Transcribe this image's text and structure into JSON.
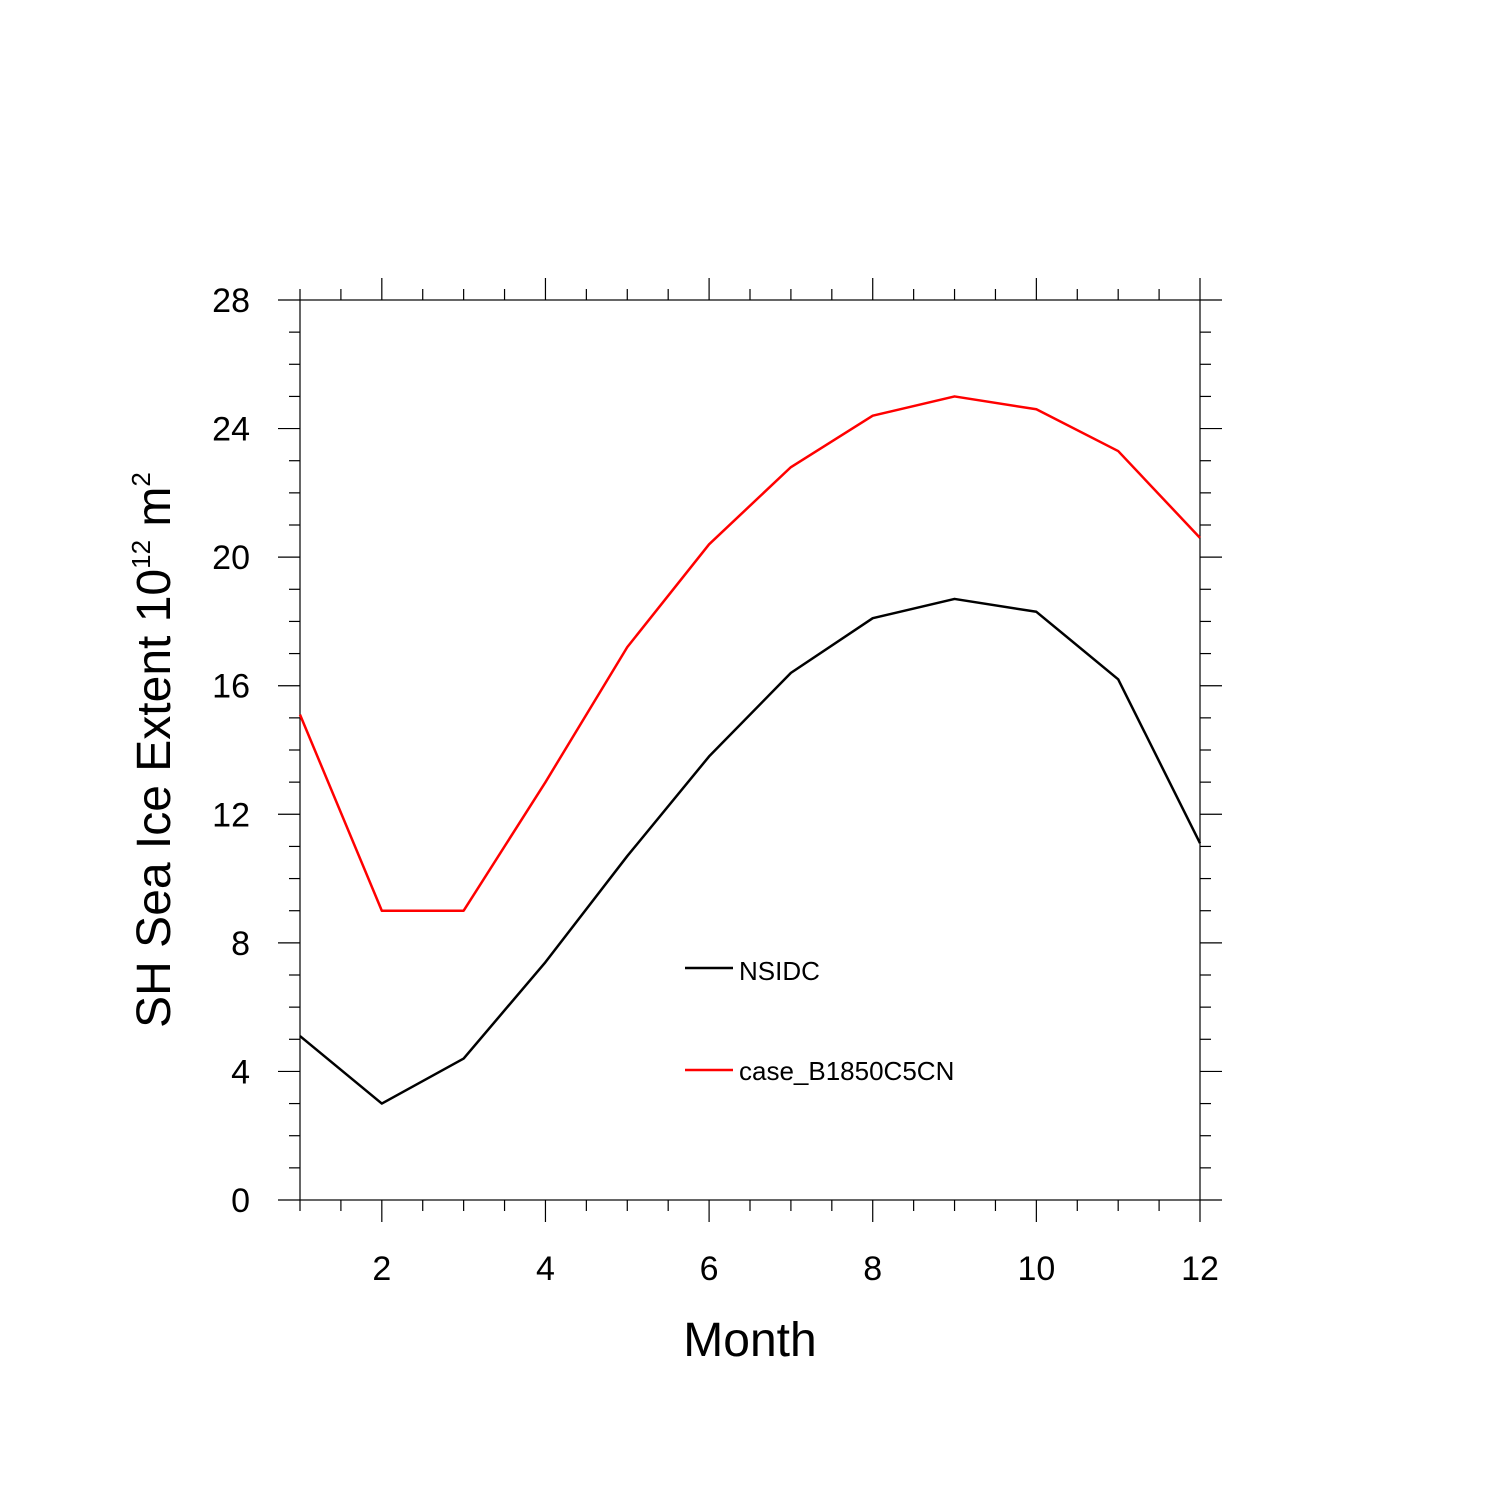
{
  "chart_data": {
    "type": "line",
    "title": "",
    "xlabel": "Month",
    "ylabel": {
      "prefix": "SH Sea Ice Extent 10",
      "exponent1": "12",
      "unit": " m",
      "exponent2": "2"
    },
    "xlim": [
      1,
      12
    ],
    "ylim": [
      0,
      28
    ],
    "x": [
      1,
      2,
      3,
      4,
      5,
      6,
      7,
      8,
      9,
      10,
      11,
      12
    ],
    "xticks": [
      2,
      4,
      6,
      8,
      10,
      12
    ],
    "yticks": [
      0,
      4,
      8,
      12,
      16,
      20,
      24,
      28
    ],
    "grid": false,
    "legend_position": "center",
    "series": [
      {
        "name": "NSIDC",
        "color": "#000000",
        "values": [
          5.1,
          3.0,
          4.4,
          7.4,
          10.7,
          13.8,
          16.4,
          18.1,
          18.7,
          18.3,
          16.2,
          11.1
        ]
      },
      {
        "name": "case_B1850C5CN",
        "color": "#ff0000",
        "values": [
          15.1,
          9.0,
          9.0,
          13.0,
          17.2,
          20.4,
          22.8,
          24.4,
          25.0,
          24.6,
          23.3,
          20.6
        ]
      }
    ]
  }
}
